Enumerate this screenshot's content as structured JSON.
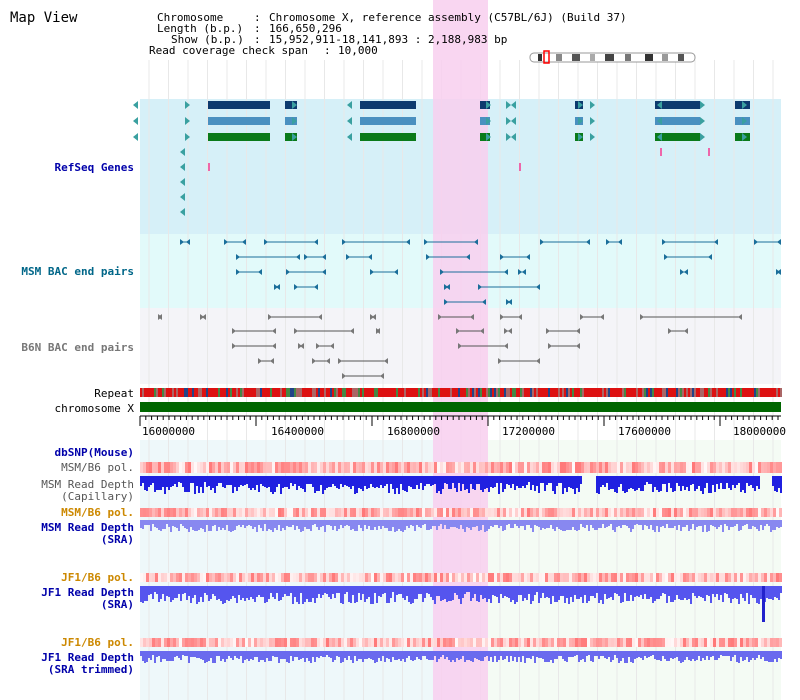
{
  "view_title": "Map View",
  "info": {
    "chromosome_key": "Chromosome",
    "chromosome_val": "Chromosome X, reference assembly (C57BL/6J) (Build 37)",
    "length_key": "Length (b.p.)",
    "length_val": "166,650,296",
    "show_key": "Show (b.p.)",
    "show_val": "15,952,911-18,141,893 : 2,188,983 bp",
    "coverage_key": "Read coverage check span",
    "coverage_val": "10,000",
    "sep": ":"
  },
  "tracks": {
    "refseq": "RefSeq Genes",
    "msm_bac": "MSM BAC end pairs",
    "b6n_bac": "B6N BAC end pairs",
    "repeat": "Repeat",
    "chromosome": "chromosome X",
    "dbsnp": "dbSNP(Mouse)",
    "msm_b6_pol_1": "MSM/B6 pol.",
    "msm_depth_cap_1": "MSM Read Depth",
    "msm_depth_cap_2": "(Capillary)",
    "msm_b6_pol_2": "MSM/B6 pol.",
    "msm_depth_sra_1": "MSM Read Depth",
    "msm_depth_sra_2": "(SRA)",
    "jf1_b6_pol_1": "JF1/B6 pol.",
    "jf1_depth_sra_1": "JF1 Read Depth",
    "jf1_depth_sra_2": "(SRA)",
    "jf1_b6_pol_2": "JF1/B6 pol.",
    "jf1_depth_trim_1": "JF1 Read Depth",
    "jf1_depth_trim_2": "(SRA trimmed)"
  },
  "axis": {
    "ticks": [
      "16000000",
      "16400000",
      "16800000",
      "17200000",
      "17600000",
      "18000000"
    ]
  },
  "colors": {
    "refseq_bg": "#d6f0f8",
    "msm_bg": "#e2fafa",
    "b6n_bg": "#f4f4f8",
    "highlight": "#f8cfee",
    "label_blue": "#0000aa",
    "label_orange": "#cc8800",
    "label_teal": "#006688",
    "chromosome_green": "#006600",
    "depth_blue": "#2020e0",
    "depth_light": "#8888f0",
    "pol_red": "#ee3333"
  }
}
